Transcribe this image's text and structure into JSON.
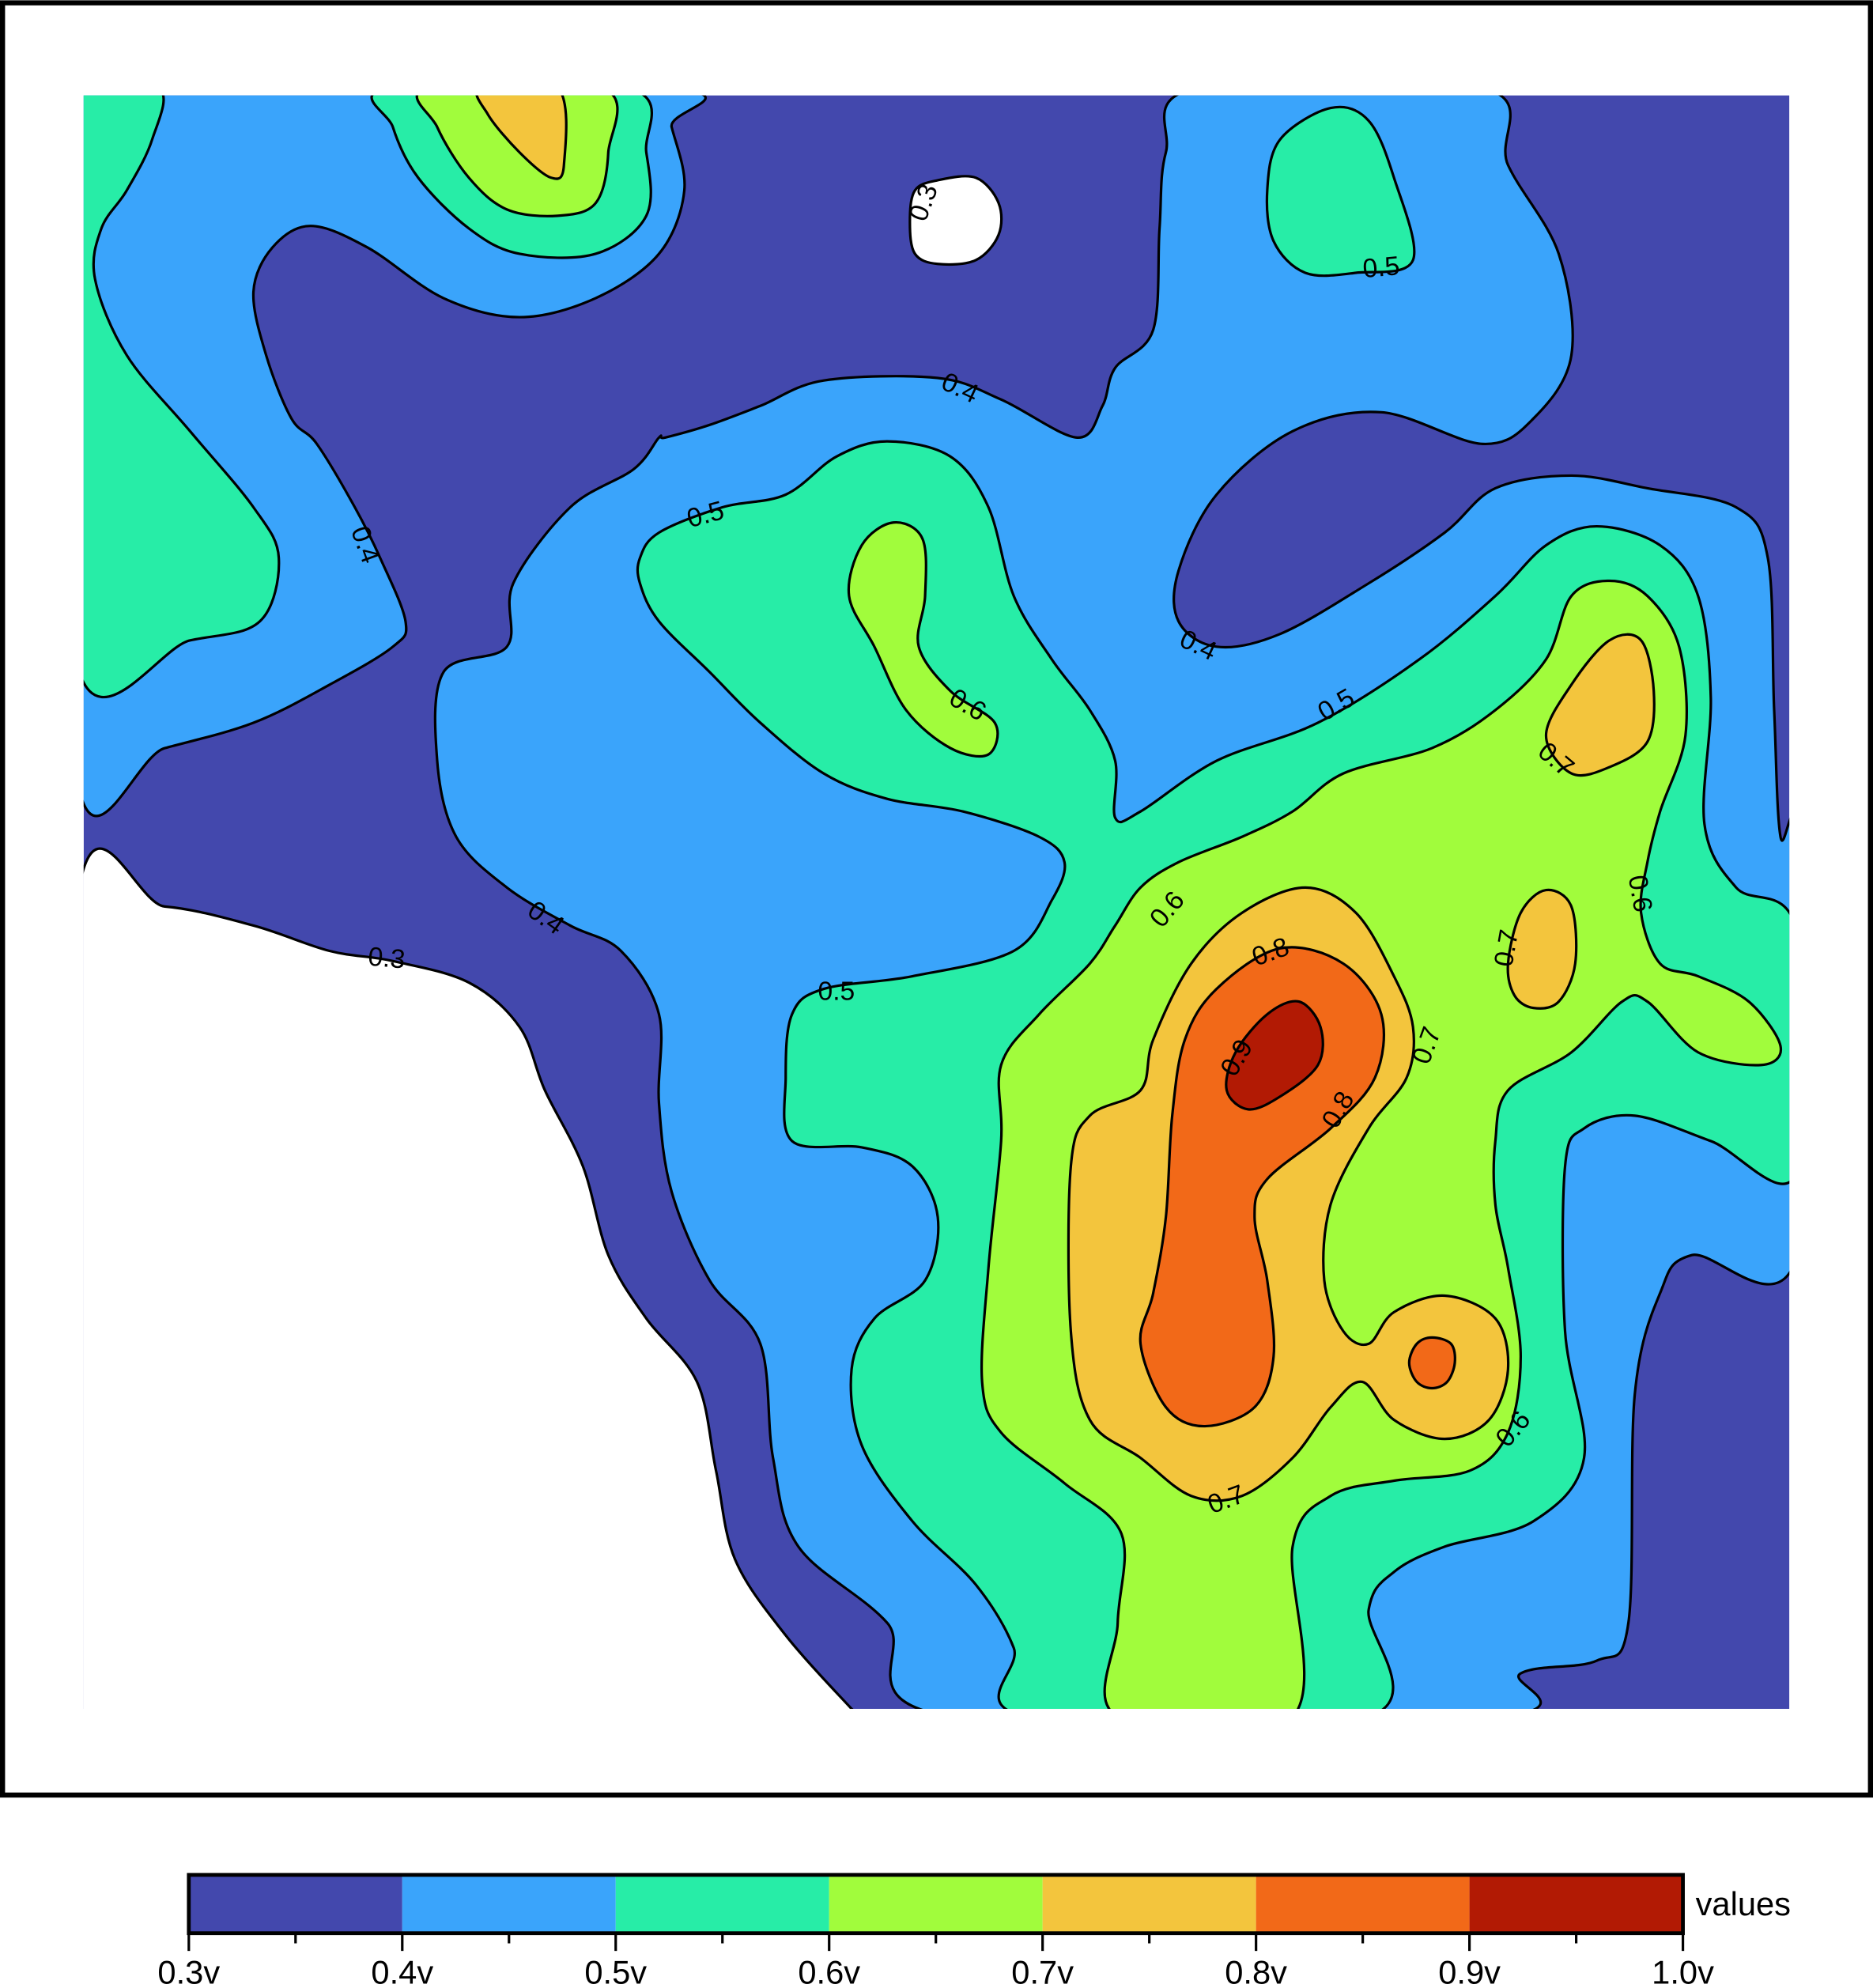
{
  "chart_data": {
    "type": "contour",
    "contour_labels": [
      0.3,
      0.5,
      0.4,
      0.4,
      0.5,
      0.6,
      0.4,
      0.5,
      0.7,
      0.6,
      0.4,
      0.3,
      0.8,
      0.7,
      0.6,
      0.5,
      0.9,
      0.7,
      0.8,
      0.6,
      0.7
    ],
    "colorbar": {
      "label": "values",
      "clim": [
        0.3,
        1.0
      ],
      "ticks": [
        {
          "value": 0.3,
          "label": "0.3v"
        },
        {
          "value": 0.4,
          "label": "0.4v"
        },
        {
          "value": 0.5,
          "label": "0.5v"
        },
        {
          "value": 0.6,
          "label": "0.6v"
        },
        {
          "value": 0.7,
          "label": "0.7v"
        },
        {
          "value": 0.8,
          "label": "0.8v"
        },
        {
          "value": 0.9,
          "label": "0.9v"
        },
        {
          "value": 1.0,
          "label": "1.0v"
        }
      ],
      "colors": [
        "#4348ad",
        "#3aa4fb",
        "#27eda7",
        "#a1fc3c",
        "#f3c53d",
        "#f26918",
        "#b21a04"
      ]
    }
  }
}
